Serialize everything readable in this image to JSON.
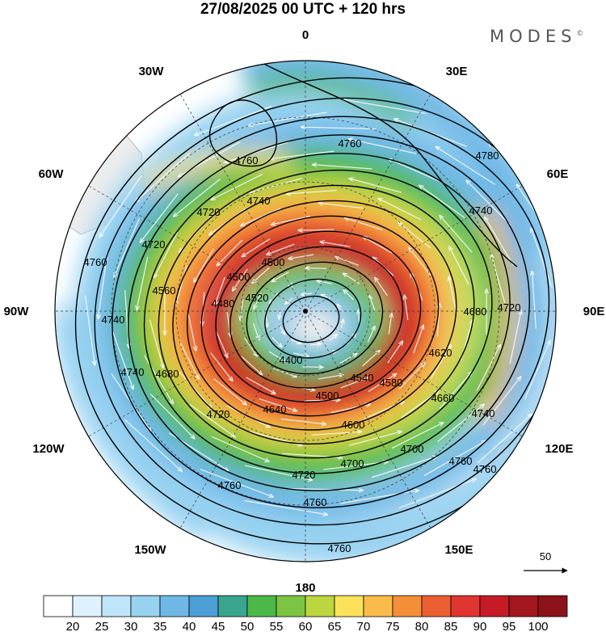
{
  "header": {
    "title": "27/08/2025  00 UTC  + 120 hrs",
    "brand": "MODES",
    "brand_mark": "©"
  },
  "map": {
    "projection": "south polar stereographic",
    "longitude_labels": [
      "0",
      "30E",
      "60E",
      "90E",
      "120E",
      "150E",
      "180",
      "150W",
      "120W",
      "90W",
      "60W",
      "30W"
    ],
    "contour_labels": [
      "4760",
      "4780",
      "4740",
      "4760",
      "4720",
      "4740",
      "4760",
      "4720",
      "4740",
      "4500",
      "4520",
      "4500",
      "4560",
      "4480",
      "4620",
      "4680",
      "4720",
      "4400",
      "4540",
      "4500",
      "4660",
      "4580",
      "4640",
      "4600",
      "4700",
      "4740",
      "4760",
      "4740",
      "4720",
      "4680",
      "4700",
      "4760",
      "4740",
      "4780",
      "4760",
      "4760",
      "4720",
      "4760"
    ],
    "vector_reference": {
      "label": "50"
    }
  },
  "colorbar": {
    "labels": [
      "20",
      "25",
      "30",
      "35",
      "40",
      "45",
      "50",
      "55",
      "60",
      "65",
      "70",
      "75",
      "80",
      "85",
      "90",
      "95",
      "100"
    ],
    "colors": [
      "#ffffff",
      "#dff2fc",
      "#bfe5f9",
      "#98d2f1",
      "#6fb8e6",
      "#4c9fd6",
      "#3aa58f",
      "#4cb84a",
      "#7cc443",
      "#bcd640",
      "#fbe25a",
      "#fbbb4b",
      "#f48f38",
      "#ec5f32",
      "#e03530",
      "#c51b26",
      "#a4161d",
      "#8b1219"
    ]
  }
}
